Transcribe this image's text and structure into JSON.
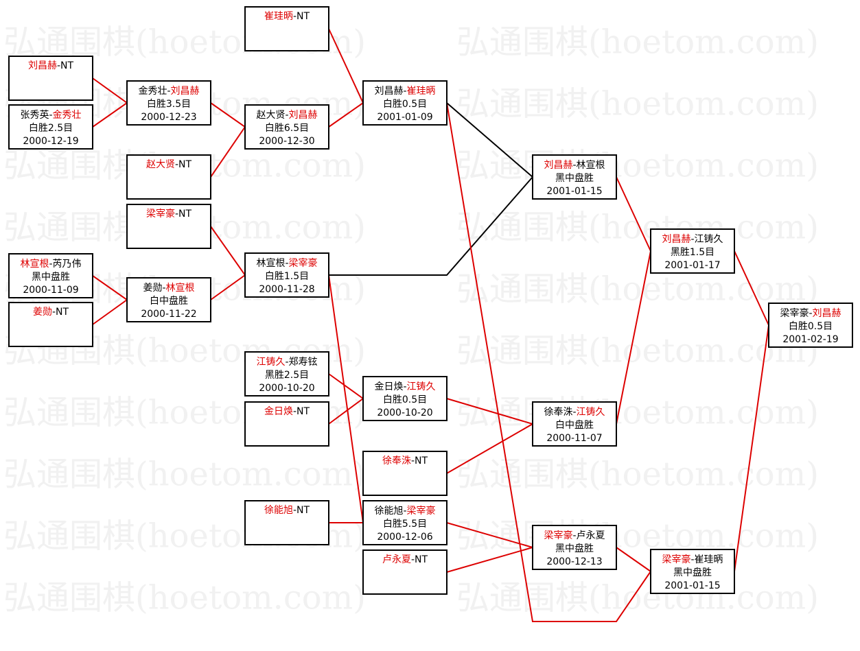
{
  "watermark": "弘通围棋(hoetom.com)",
  "separator": "-",
  "winner_color": "#dd0000",
  "nodes": [
    {
      "players": [
        "刘昌赫",
        "NT"
      ],
      "winner": 0
    },
    {
      "players": [
        "张秀英",
        "金秀壮"
      ],
      "winner": 1,
      "result": "白胜2.5目",
      "date": "2000-12-19"
    },
    {
      "players": [
        "林宣根",
        "芮乃伟"
      ],
      "winner": 0,
      "result": "黑中盘胜",
      "date": "2000-11-09"
    },
    {
      "players": [
        "姜勋",
        "NT"
      ],
      "winner": 0
    },
    {
      "players": [
        "金秀壮",
        "刘昌赫"
      ],
      "winner": 1,
      "result": "白胜3.5目",
      "date": "2000-12-23"
    },
    {
      "players": [
        "赵大贤",
        "NT"
      ],
      "winner": 0
    },
    {
      "players": [
        "梁宰豪",
        "NT"
      ],
      "winner": 0
    },
    {
      "players": [
        "姜勋",
        "林宣根"
      ],
      "winner": 1,
      "result": "白中盘胜",
      "date": "2000-11-22"
    },
    {
      "players": [
        "崔珪昞",
        "NT"
      ],
      "winner": 0
    },
    {
      "players": [
        "赵大贤",
        "刘昌赫"
      ],
      "winner": 1,
      "result": "白胜6.5目",
      "date": "2000-12-30"
    },
    {
      "players": [
        "林宣根",
        "梁宰豪"
      ],
      "winner": 1,
      "result": "白胜1.5目",
      "date": "2000-11-28"
    },
    {
      "players": [
        "江铸久",
        "郑寿铉"
      ],
      "winner": 0,
      "result": "黑胜2.5目",
      "date": "2000-10-20"
    },
    {
      "players": [
        "金日焕",
        "NT"
      ],
      "winner": 0
    },
    {
      "players": [
        "徐能旭",
        "NT"
      ],
      "winner": 0
    },
    {
      "players": [
        "刘昌赫",
        "崔珪昞"
      ],
      "winner": 1,
      "result": "白胜0.5目",
      "date": "2001-01-09"
    },
    {
      "players": [
        "金日焕",
        "江铸久"
      ],
      "winner": 1,
      "result": "白胜0.5目",
      "date": "2000-10-20"
    },
    {
      "players": [
        "徐奉洙",
        "NT"
      ],
      "winner": 0
    },
    {
      "players": [
        "徐能旭",
        "梁宰豪"
      ],
      "winner": 1,
      "result": "白胜5.5目",
      "date": "2000-12-06"
    },
    {
      "players": [
        "卢永夏",
        "NT"
      ],
      "winner": 0
    },
    {
      "players": [
        "刘昌赫",
        "林宣根"
      ],
      "winner": 0,
      "result": "黑中盘胜",
      "date": "2001-01-15"
    },
    {
      "players": [
        "徐奉洙",
        "江铸久"
      ],
      "winner": 1,
      "result": "白中盘胜",
      "date": "2000-11-07"
    },
    {
      "players": [
        "梁宰豪",
        "卢永夏"
      ],
      "winner": 0,
      "result": "黑中盘胜",
      "date": "2000-12-13"
    },
    {
      "players": [
        "刘昌赫",
        "江铸久"
      ],
      "winner": 0,
      "result": "黑胜1.5目",
      "date": "2001-01-17"
    },
    {
      "players": [
        "梁宰豪",
        "崔珪昞"
      ],
      "winner": 0,
      "result": "黑中盘胜",
      "date": "2001-01-15"
    },
    {
      "players": [
        "梁宰豪",
        "刘昌赫"
      ],
      "winner": 1,
      "result": "白胜0.5目",
      "date": "2001-02-19"
    }
  ]
}
